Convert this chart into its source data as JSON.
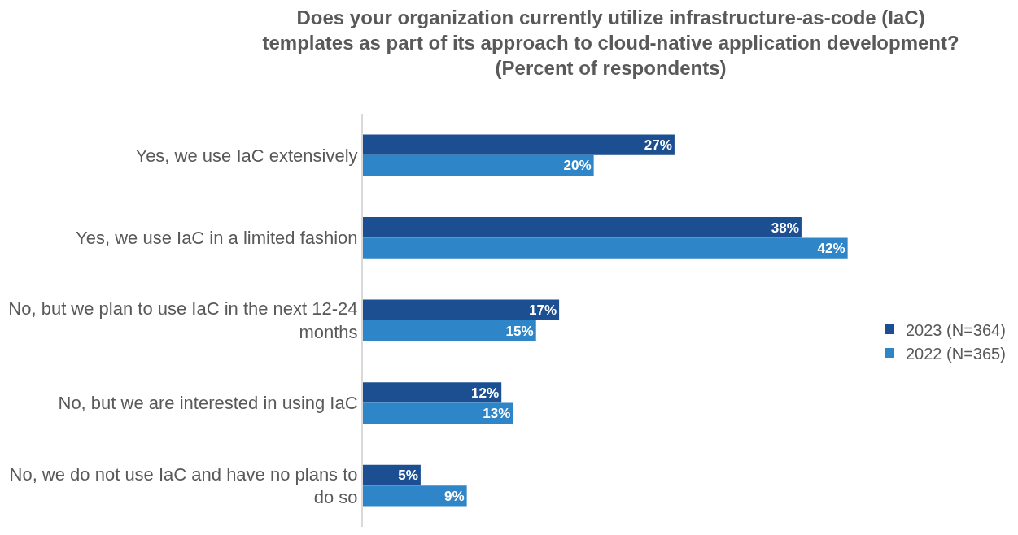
{
  "chart_data": {
    "type": "bar",
    "orientation": "horizontal",
    "title": "Does your organization currently utilize infrastructure-as-code (IaC) templates as part of its approach to cloud-native application development? (Percent of respondents)",
    "categories": [
      "Yes, we use IaC extensively",
      "Yes, we use IaC in a limited fashion",
      "No, but we plan to use IaC in the next 12-24 months",
      "No, but we are interested in using IaC",
      "No, we do not use IaC and have no plans to do so"
    ],
    "series": [
      {
        "name": "2023 (N=364)",
        "color": "#1b4f91",
        "values": [
          27,
          38,
          17,
          12,
          5
        ],
        "value_labels": [
          "27%",
          "38%",
          "17%",
          "12%",
          "5%"
        ]
      },
      {
        "name": "2022 (N=365)",
        "color": "#2e86c8",
        "values": [
          20,
          42,
          15,
          13,
          9
        ],
        "value_labels": [
          "20%",
          "42%",
          "15%",
          "13%",
          "9%"
        ]
      }
    ],
    "legend": "right"
  }
}
